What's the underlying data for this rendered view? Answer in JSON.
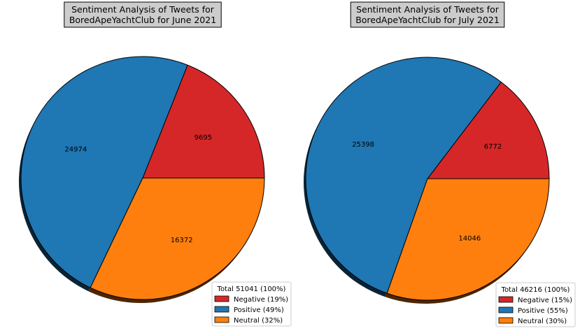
{
  "chart_data": [
    {
      "type": "pie",
      "title_lines": [
        "Sentiment Analysis of Tweets for",
        " BoredApeYachtClub for June 2021"
      ],
      "legend_title": "Total 51041 (100%)",
      "legend_position": "bottom-right",
      "shadow": true,
      "start_angle_deg": 0,
      "slices": [
        {
          "key": "negative",
          "label": "Negative (19%)",
          "value": 9695,
          "color": "#d62728"
        },
        {
          "key": "positive",
          "label": "Positive (49%)",
          "value": 24974,
          "color": "#1f77b4"
        },
        {
          "key": "neutral",
          "label": "Neutral (32%)",
          "value": 16372,
          "color": "#ff7f0e"
        }
      ]
    },
    {
      "type": "pie",
      "title_lines": [
        "Sentiment Analysis of Tweets for",
        " BoredApeYachtClub for July 2021"
      ],
      "legend_title": "Total 46216 (100%)",
      "legend_position": "bottom-right",
      "shadow": true,
      "start_angle_deg": 0,
      "slices": [
        {
          "key": "negative",
          "label": "Negative (15%)",
          "value": 6772,
          "color": "#d62728"
        },
        {
          "key": "positive",
          "label": "Positive (55%)",
          "value": 25398,
          "color": "#1f77b4"
        },
        {
          "key": "neutral",
          "label": "Neutral (30%)",
          "value": 14046,
          "color": "#ff7f0e"
        }
      ]
    }
  ]
}
